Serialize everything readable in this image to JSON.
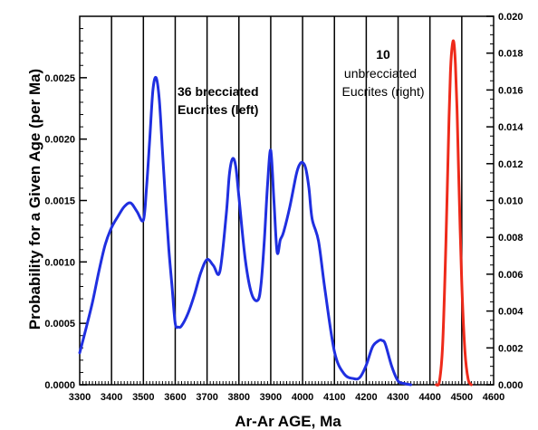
{
  "chart_data": {
    "type": "line",
    "xlabel": "Ar-Ar  AGE,  Ma",
    "ylabel": "Probability for a Given Age (per Ma)",
    "xlim": [
      3300,
      4600
    ],
    "ylim_left": [
      0,
      0.003
    ],
    "ylim_right": [
      0,
      0.02
    ],
    "x_ticks": [
      "3300",
      "3400",
      "3500",
      "3600",
      "3700",
      "3800",
      "3900",
      "4000",
      "4100",
      "4200",
      "4300",
      "4400",
      "4500",
      "4600"
    ],
    "y_left_ticks": [
      "0.0000",
      "0.0005",
      "0.0010",
      "0.0015",
      "0.0020",
      "0.0025"
    ],
    "y_right_ticks": [
      "0.000",
      "0.002",
      "0.004",
      "0.006",
      "0.008",
      "0.010",
      "0.012",
      "0.014",
      "0.016",
      "0.018",
      "0.020"
    ],
    "grid_x": true,
    "grid_y": false,
    "annotations": [
      {
        "lines": [
          "36 brecciated",
          "Eucrites (left)"
        ]
      },
      {
        "lines": [
          "10",
          "unbrecciated",
          "Eucrites (right)"
        ]
      }
    ],
    "series": [
      {
        "axis": "left",
        "color": "#1f2fe0",
        "x": [
          3300,
          3320,
          3340,
          3360,
          3380,
          3400,
          3420,
          3440,
          3460,
          3480,
          3500,
          3510,
          3520,
          3530,
          3540,
          3550,
          3560,
          3570,
          3580,
          3590,
          3600,
          3610,
          3620,
          3640,
          3660,
          3680,
          3700,
          3720,
          3740,
          3760,
          3770,
          3780,
          3790,
          3800,
          3820,
          3840,
          3860,
          3870,
          3880,
          3890,
          3900,
          3910,
          3920,
          3930,
          3940,
          3960,
          3980,
          3990,
          4000,
          4010,
          4020,
          4030,
          4050,
          4070,
          4100,
          4130,
          4160,
          4180,
          4200,
          4220,
          4240,
          4250,
          4260,
          4280,
          4300,
          4320,
          4340
        ],
        "y": [
          0.00026,
          0.00046,
          0.00067,
          0.00092,
          0.00114,
          0.00128,
          0.00137,
          0.00145,
          0.00148,
          0.00141,
          0.00134,
          0.00161,
          0.002,
          0.0024,
          0.0025,
          0.00232,
          0.0019,
          0.00148,
          0.0011,
          0.0008,
          0.0005,
          0.00047,
          0.00048,
          0.00058,
          0.00073,
          0.00091,
          0.00102,
          0.00097,
          0.00092,
          0.00138,
          0.00171,
          0.00184,
          0.00178,
          0.00153,
          0.00102,
          0.00074,
          0.00069,
          0.00083,
          0.00118,
          0.00163,
          0.00191,
          0.0015,
          0.00108,
          0.00118,
          0.00124,
          0.00145,
          0.00171,
          0.00179,
          0.00181,
          0.00176,
          0.0016,
          0.00135,
          0.00117,
          0.00078,
          0.00027,
          9e-05,
          5e-05,
          6e-05,
          0.00016,
          0.00031,
          0.00036,
          0.00036,
          0.00033,
          0.00015,
          3e-05,
          1e-05,
          0.0
        ]
      },
      {
        "axis": "right",
        "color": "#ee2a1a",
        "x": [
          4420,
          4430,
          4440,
          4450,
          4460,
          4465,
          4470,
          4475,
          4480,
          4485,
          4490,
          4500,
          4510,
          4520,
          4530
        ],
        "y": [
          0.0,
          0.0002,
          0.0022,
          0.0076,
          0.0145,
          0.0172,
          0.0184,
          0.0186,
          0.0174,
          0.015,
          0.0116,
          0.0055,
          0.0018,
          0.0003,
          0.0
        ]
      }
    ]
  }
}
